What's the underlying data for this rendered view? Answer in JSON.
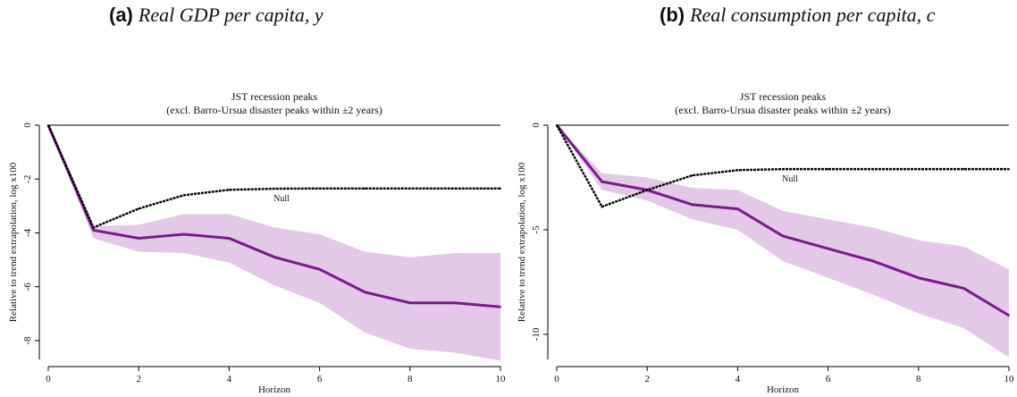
{
  "panels": [
    {
      "letter": "(a)",
      "caption": "Real GDP per capita, y",
      "chart_data": {
        "type": "line",
        "title": "JST recession peaks",
        "subtitle": "(excl. Barro-Ursua disaster peaks within ±2 years)",
        "xlabel": "Horizon",
        "ylabel": "Relative to trend extrapolation, log x100",
        "x": [
          0,
          1,
          2,
          3,
          4,
          5,
          6,
          7,
          8,
          9,
          10
        ],
        "xticks": [
          0,
          2,
          4,
          6,
          8,
          10
        ],
        "yticks": [
          0,
          -2,
          -4,
          -6,
          -8
        ],
        "xlim": [
          0,
          10
        ],
        "ylim": [
          -8.7,
          0
        ],
        "series": [
          {
            "values": [
              0,
              -3.9,
              -4.2,
              -4.05,
              -4.2,
              -4.9,
              -5.35,
              -6.2,
              -6.6,
              -6.6,
              -6.75
            ],
            "color": "#7b1a8b"
          },
          {
            "name": "Null",
            "values": [
              0,
              -3.8,
              -3.1,
              -2.6,
              -2.4,
              -2.36,
              -2.35,
              -2.35,
              -2.35,
              -2.35,
              -2.35
            ],
            "color": "#000000",
            "style": "dashed"
          }
        ],
        "band": {
          "upper": [
            0,
            -3.75,
            -3.7,
            -3.3,
            -3.3,
            -3.8,
            -4.05,
            -4.7,
            -4.9,
            -4.75,
            -4.75
          ],
          "lower": [
            0,
            -4.2,
            -4.7,
            -4.75,
            -5.1,
            -5.95,
            -6.6,
            -7.7,
            -8.3,
            -8.45,
            -8.75
          ],
          "color": "#e3c8e8"
        },
        "zero_line": true
      }
    },
    {
      "letter": "(b)",
      "caption": "Real consumption per capita, c",
      "chart_data": {
        "type": "line",
        "title": "JST recession peaks",
        "subtitle": "(excl. Barro-Ursua disaster peaks within ±2 years)",
        "xlabel": "Horizon",
        "ylabel": "Relative to trend extrapolation, log x100",
        "x": [
          0,
          1,
          2,
          3,
          4,
          5,
          6,
          7,
          8,
          9,
          10
        ],
        "xticks": [
          0,
          2,
          4,
          6,
          8,
          10
        ],
        "yticks": [
          0,
          -5,
          -10
        ],
        "xlim": [
          0,
          10
        ],
        "ylim": [
          -11.2,
          0
        ],
        "series": [
          {
            "values": [
              0,
              -2.7,
              -3.1,
              -3.8,
              -4.0,
              -5.3,
              -5.9,
              -6.5,
              -7.3,
              -7.8,
              -9.1
            ],
            "color": "#7b1a8b"
          },
          {
            "name": "Null",
            "values": [
              0,
              -3.9,
              -3.1,
              -2.4,
              -2.15,
              -2.1,
              -2.1,
              -2.1,
              -2.1,
              -2.1,
              -2.1
            ],
            "color": "#000000",
            "style": "dashed"
          }
        ],
        "band": {
          "upper": [
            0,
            -2.3,
            -2.5,
            -3.0,
            -3.1,
            -4.1,
            -4.5,
            -4.9,
            -5.5,
            -5.8,
            -6.9
          ],
          "lower": [
            0,
            -3.1,
            -3.6,
            -4.5,
            -5.0,
            -6.5,
            -7.3,
            -8.1,
            -9.0,
            -9.7,
            -11.1
          ],
          "color": "#e3c8e8"
        },
        "zero_line": true
      }
    }
  ]
}
